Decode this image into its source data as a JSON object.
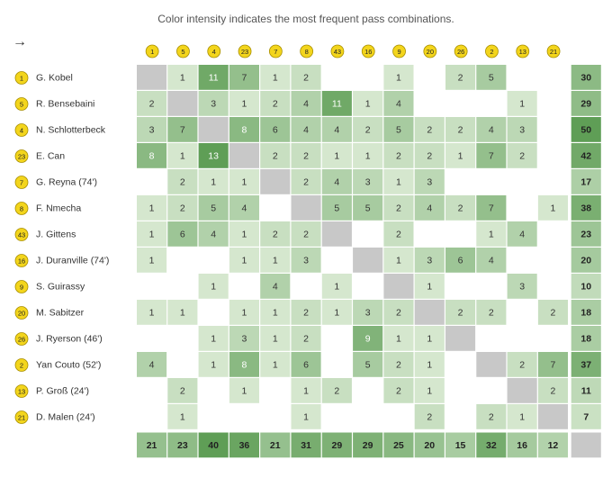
{
  "caption": "Color intensity indicates the most frequent pass combinations.",
  "arrow_glyph": "→",
  "colors": {
    "badge_fill": "#f3d51c",
    "diag": "#c8c8c8",
    "low": "#e6f2e0",
    "high": "#5f9e56"
  },
  "chart_data": {
    "type": "heatmap",
    "title": "",
    "players": [
      {
        "number": "1",
        "name": "G. Kobel"
      },
      {
        "number": "5",
        "name": "R. Bensebaini"
      },
      {
        "number": "4",
        "name": "N. Schlotterbeck"
      },
      {
        "number": "23",
        "name": "E. Can"
      },
      {
        "number": "7",
        "name": "G. Reyna (74')"
      },
      {
        "number": "8",
        "name": "F. Nmecha"
      },
      {
        "number": "43",
        "name": "J. Gittens"
      },
      {
        "number": "16",
        "name": "J. Duranville (74')"
      },
      {
        "number": "9",
        "name": "S. Guirassy"
      },
      {
        "number": "20",
        "name": "M. Sabitzer"
      },
      {
        "number": "26",
        "name": "J. Ryerson (46')"
      },
      {
        "number": "2",
        "name": "Yan Couto (52')"
      },
      {
        "number": "13",
        "name": "P. Groß (24')"
      },
      {
        "number": "21",
        "name": "D. Malen (24')"
      }
    ],
    "columns": [
      "1",
      "5",
      "4",
      "23",
      "7",
      "8",
      "43",
      "16",
      "9",
      "20",
      "26",
      "2",
      "13",
      "21"
    ],
    "matrix": [
      [
        null,
        1,
        11,
        7,
        1,
        2,
        null,
        null,
        1,
        null,
        2,
        5,
        null,
        null
      ],
      [
        2,
        null,
        3,
        1,
        2,
        4,
        11,
        1,
        4,
        null,
        null,
        null,
        1,
        null
      ],
      [
        3,
        7,
        null,
        8,
        6,
        4,
        4,
        2,
        5,
        2,
        2,
        4,
        3,
        null
      ],
      [
        8,
        1,
        13,
        null,
        2,
        2,
        1,
        1,
        2,
        2,
        1,
        7,
        2,
        null
      ],
      [
        null,
        2,
        1,
        1,
        null,
        2,
        4,
        3,
        1,
        3,
        null,
        null,
        null,
        null
      ],
      [
        1,
        2,
        5,
        4,
        null,
        null,
        5,
        5,
        2,
        4,
        2,
        7,
        null,
        1
      ],
      [
        1,
        6,
        4,
        1,
        2,
        2,
        null,
        null,
        2,
        null,
        null,
        1,
        4,
        null
      ],
      [
        1,
        null,
        null,
        1,
        1,
        3,
        null,
        null,
        1,
        3,
        6,
        4,
        null,
        null
      ],
      [
        null,
        null,
        1,
        null,
        4,
        null,
        1,
        null,
        null,
        1,
        null,
        null,
        3,
        null
      ],
      [
        1,
        1,
        null,
        1,
        1,
        2,
        1,
        3,
        2,
        null,
        2,
        2,
        null,
        2
      ],
      [
        null,
        null,
        1,
        3,
        1,
        2,
        null,
        9,
        1,
        1,
        null,
        null,
        null,
        null
      ],
      [
        4,
        null,
        1,
        8,
        1,
        6,
        null,
        5,
        2,
        1,
        null,
        null,
        2,
        7
      ],
      [
        null,
        2,
        null,
        1,
        null,
        1,
        2,
        null,
        2,
        1,
        null,
        null,
        null,
        2
      ],
      [
        null,
        1,
        null,
        null,
        null,
        1,
        null,
        null,
        null,
        2,
        null,
        2,
        1,
        null
      ]
    ],
    "row_totals": [
      30,
      29,
      50,
      42,
      17,
      38,
      23,
      20,
      10,
      18,
      18,
      37,
      11,
      7
    ],
    "column_totals": [
      21,
      23,
      40,
      36,
      21,
      31,
      29,
      29,
      25,
      20,
      15,
      32,
      16,
      12
    ]
  }
}
